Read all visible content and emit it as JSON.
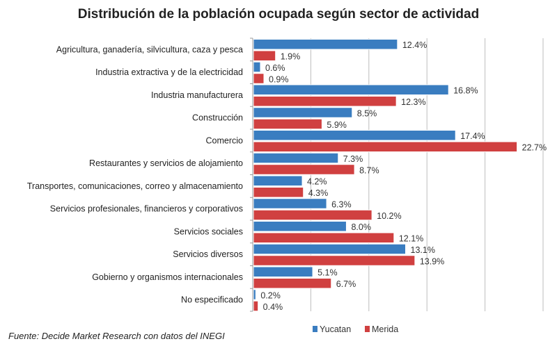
{
  "chart_data": {
    "type": "bar",
    "orientation": "horizontal",
    "title": "Distribución de la población ocupada según sector de actividad",
    "categories": [
      "Agricultura, ganadería, silvicultura, caza y pesca",
      "Industria extractiva y de la electricidad",
      "Industria manufacturera",
      "Construcción",
      "Comercio",
      "Restaurantes y servicios de alojamiento",
      "Transportes, comunicaciones, correo y almacenamiento",
      "Servicios profesionales, financieros y corporativos",
      "Servicios sociales",
      "Servicios diversos",
      "Gobierno y organismos internacionales",
      "No especificado"
    ],
    "series": [
      {
        "name": "Yucatan",
        "color": "#3a7dc0",
        "values": [
          12.4,
          0.6,
          16.8,
          8.5,
          17.4,
          7.3,
          4.2,
          6.3,
          8.0,
          13.1,
          5.1,
          0.2
        ]
      },
      {
        "name": "Merida",
        "color": "#d04040",
        "values": [
          1.9,
          0.9,
          12.3,
          5.9,
          22.7,
          8.7,
          4.3,
          10.2,
          12.1,
          13.9,
          6.7,
          0.4
        ]
      }
    ],
    "value_suffix": "%",
    "xlim": [
      0,
      25
    ],
    "grid": true,
    "legend": "bottom",
    "source": "Fuente: Decide Market Research con datos del INEGI"
  }
}
